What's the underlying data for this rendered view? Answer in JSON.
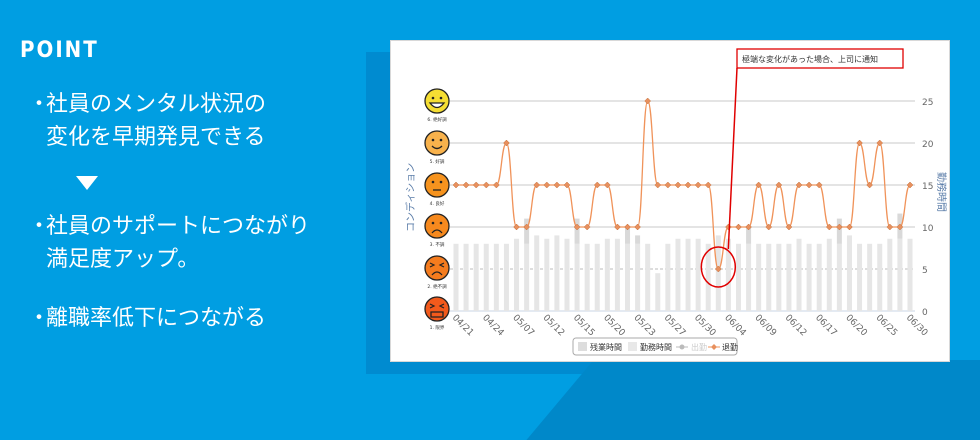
{
  "left": {
    "heading": "POINT",
    "items": [
      {
        "lines": [
          "社員のメンタル状況の",
          "変化を早期発見できる"
        ]
      },
      {
        "lines": [
          "社員のサポートにつながり",
          "満足度アップ。"
        ]
      },
      {
        "lines": [
          "離職率低下につながる"
        ]
      }
    ],
    "bullet": "・"
  },
  "colors": {
    "background": "#009ee2",
    "line": "#f0935a",
    "marker": "#e8905e",
    "bar": "#e6e6e6",
    "callout": "#e00000"
  },
  "chart_data": {
    "type": "line",
    "callout": "極端な変化があった場合、上司に通知",
    "left_axis_label": "コンディション",
    "right_axis_label": "勤務時間",
    "faces": [
      {
        "label": "6. 絶好調",
        "value": 25,
        "color": "#f5de33",
        "icon": "grin-face-icon"
      },
      {
        "label": "5. 好調",
        "value": 20,
        "color": "#f8b24c",
        "icon": "smile-face-icon"
      },
      {
        "label": "4. 良好",
        "value": 15,
        "color": "#f6931e",
        "icon": "neutral-face-icon"
      },
      {
        "label": "3. 不調",
        "value": 10,
        "color": "#f6891e",
        "icon": "sad-face-icon"
      },
      {
        "label": "2. 絶不調",
        "value": 5,
        "color": "#f57c1e",
        "icon": "very-sad-face-icon"
      },
      {
        "label": "1. 限界",
        "value": 0,
        "color": "#f25a1c",
        "icon": "angry-face-icon"
      }
    ],
    "yticks": [
      0,
      5,
      10,
      15,
      20,
      25
    ],
    "ylim": [
      0,
      25
    ],
    "xtick_labels": [
      "04/21",
      "04/24",
      "05/07",
      "05/12",
      "05/15",
      "05/20",
      "05/23",
      "05/27",
      "05/30",
      "06/04",
      "06/09",
      "06/12",
      "06/17",
      "06/20",
      "06/25",
      "06/30"
    ],
    "condition": [
      15,
      15,
      15,
      15,
      15,
      20,
      10,
      10,
      15,
      15,
      15,
      15,
      10,
      10,
      15,
      15,
      10,
      10,
      10,
      25,
      15,
      15,
      15,
      15,
      15,
      15,
      5,
      10,
      10,
      10,
      15,
      10,
      15,
      10,
      15,
      15,
      15,
      10,
      10,
      10,
      20,
      15,
      20,
      10,
      10,
      15
    ],
    "work_hours": [
      8,
      8,
      8,
      8,
      8,
      8,
      8.6,
      8,
      9,
      8.6,
      9,
      8.6,
      8,
      8,
      8,
      8.6,
      8.6,
      8,
      8,
      8,
      4.5,
      8,
      8.6,
      8.6,
      8.6,
      8,
      9,
      8.6,
      8,
      8,
      8,
      8,
      8,
      8,
      8.6,
      8,
      8,
      8.6,
      8,
      9,
      8,
      8,
      8,
      8.6,
      8.6,
      8.6
    ],
    "overtime_hours": [
      0,
      0,
      0,
      0,
      0,
      0,
      0,
      3,
      0,
      0,
      0,
      0,
      3,
      0,
      0,
      0,
      0,
      2,
      1,
      0,
      0,
      0,
      0,
      0,
      0,
      0,
      0,
      0,
      0,
      2,
      0,
      0,
      0,
      0,
      0,
      0,
      0,
      0,
      3,
      0,
      0,
      0,
      0,
      0,
      3,
      0
    ],
    "legend": [
      {
        "name": "残業時間",
        "type": "bar"
      },
      {
        "name": "勤務時間",
        "type": "bar"
      },
      {
        "name": "出勤",
        "type": "line",
        "hidden": true
      },
      {
        "name": "退勤",
        "type": "line"
      }
    ],
    "highlight_index": 26
  }
}
